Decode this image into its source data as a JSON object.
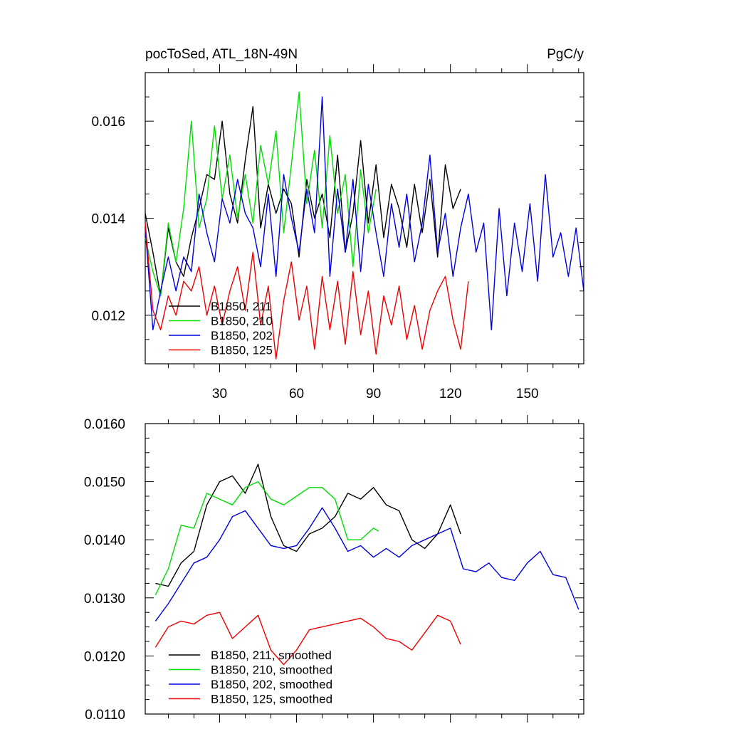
{
  "chart_data": [
    {
      "type": "line",
      "title_left": "pocToSed, ATL_18N-49N",
      "title_right": "PgC/y",
      "xlim": [
        1,
        172
      ],
      "ylim": [
        0.011,
        0.017
      ],
      "xticks": [
        30,
        60,
        90,
        120,
        150
      ],
      "xtick_labels": [
        "30",
        "60",
        "90",
        "120",
        "150"
      ],
      "yticks": [
        0.012,
        0.014,
        0.016
      ],
      "ytick_labels": [
        "0.012",
        "0.014",
        "0.016"
      ],
      "legend": "bottom-left",
      "series": [
        {
          "name": "B1850, 211",
          "color": "#000000",
          "x": [
            1,
            4,
            7,
            10,
            13,
            16,
            19,
            22,
            25,
            28,
            31,
            34,
            37,
            40,
            43,
            46,
            49,
            52,
            55,
            58,
            61,
            64,
            67,
            70,
            73,
            76,
            79,
            82,
            85,
            88,
            91,
            94,
            97,
            100,
            103,
            106,
            109,
            112,
            115,
            118,
            121,
            124
          ],
          "y": [
            0.0141,
            0.0133,
            0.0124,
            0.0138,
            0.0131,
            0.0128,
            0.0136,
            0.0142,
            0.0149,
            0.0148,
            0.016,
            0.0145,
            0.0139,
            0.0152,
            0.0163,
            0.0138,
            0.0147,
            0.0141,
            0.0146,
            0.0143,
            0.0132,
            0.0148,
            0.014,
            0.0145,
            0.0136,
            0.0153,
            0.0133,
            0.0141,
            0.0156,
            0.0139,
            0.0151,
            0.0136,
            0.0147,
            0.0142,
            0.0134,
            0.0147,
            0.0137,
            0.0148,
            0.0132,
            0.0151,
            0.0142,
            0.0146
          ]
        },
        {
          "name": "B1850, 210",
          "color": "#00dd00",
          "x": [
            1,
            4,
            7,
            10,
            13,
            16,
            19,
            22,
            25,
            28,
            31,
            34,
            37,
            40,
            43,
            46,
            49,
            52,
            55,
            58,
            61,
            64,
            67,
            70,
            73,
            76,
            79,
            82,
            85,
            88,
            91
          ],
          "y": [
            0.0136,
            0.0129,
            0.0124,
            0.0139,
            0.0131,
            0.0142,
            0.016,
            0.0138,
            0.0144,
            0.0159,
            0.0144,
            0.0153,
            0.014,
            0.0149,
            0.0139,
            0.0155,
            0.0147,
            0.0158,
            0.0137,
            0.0151,
            0.0166,
            0.0143,
            0.0154,
            0.0138,
            0.0157,
            0.0141,
            0.0149,
            0.013,
            0.015,
            0.0137,
            0.0146
          ]
        },
        {
          "name": "B1850, 202",
          "color": "#0000dd",
          "x": [
            1,
            4,
            7,
            10,
            13,
            16,
            19,
            22,
            25,
            28,
            31,
            34,
            37,
            40,
            43,
            46,
            49,
            52,
            55,
            58,
            61,
            64,
            67,
            70,
            73,
            76,
            79,
            82,
            85,
            88,
            91,
            94,
            97,
            100,
            103,
            106,
            109,
            112,
            115,
            118,
            121,
            124,
            127,
            130,
            133,
            136,
            139,
            142,
            145,
            148,
            151,
            154,
            157,
            160,
            163,
            166,
            169,
            172
          ],
          "y": [
            0.0138,
            0.0117,
            0.0125,
            0.0132,
            0.0125,
            0.0132,
            0.0129,
            0.0145,
            0.0137,
            0.0131,
            0.0144,
            0.0139,
            0.0148,
            0.0141,
            0.0138,
            0.013,
            0.0145,
            0.0128,
            0.0149,
            0.014,
            0.0133,
            0.0146,
            0.0137,
            0.0165,
            0.0128,
            0.0146,
            0.0133,
            0.0148,
            0.0129,
            0.0147,
            0.0137,
            0.0128,
            0.0143,
            0.0134,
            0.0145,
            0.0131,
            0.0139,
            0.0153,
            0.0133,
            0.0141,
            0.0128,
            0.0138,
            0.0145,
            0.0133,
            0.0139,
            0.0117,
            0.0142,
            0.0124,
            0.0139,
            0.0129,
            0.0143,
            0.0127,
            0.0149,
            0.0132,
            0.0137,
            0.0128,
            0.0138,
            0.0125
          ]
        },
        {
          "name": "B1850, 125",
          "color": "#ee0000",
          "x": [
            1,
            4,
            7,
            10,
            13,
            16,
            19,
            22,
            25,
            28,
            31,
            34,
            37,
            40,
            43,
            46,
            49,
            52,
            55,
            58,
            61,
            64,
            67,
            70,
            73,
            76,
            79,
            82,
            85,
            88,
            91,
            94,
            97,
            100,
            103,
            106,
            109,
            112,
            115,
            118,
            121,
            124,
            127
          ],
          "y": [
            0.0139,
            0.0121,
            0.0117,
            0.0124,
            0.012,
            0.0127,
            0.0125,
            0.013,
            0.012,
            0.0126,
            0.0118,
            0.0125,
            0.013,
            0.0121,
            0.0133,
            0.0118,
            0.0126,
            0.0111,
            0.0123,
            0.0131,
            0.0119,
            0.0126,
            0.0113,
            0.0128,
            0.0117,
            0.0127,
            0.0114,
            0.0129,
            0.0116,
            0.0125,
            0.0112,
            0.0124,
            0.0118,
            0.0126,
            0.0115,
            0.0122,
            0.0113,
            0.0121,
            0.0125,
            0.0128,
            0.0119,
            0.0113,
            0.0127
          ]
        }
      ]
    },
    {
      "type": "line",
      "xlim": [
        1,
        172
      ],
      "ylim": [
        0.011,
        0.016
      ],
      "xticks": [
        30,
        60,
        90,
        120,
        150
      ],
      "yticks": [
        0.011,
        0.012,
        0.013,
        0.014,
        0.015,
        0.016
      ],
      "ytick_labels": [
        "0.0110",
        "0.0120",
        "0.0130",
        "0.0140",
        "0.0150",
        "0.0160"
      ],
      "legend": "bottom-left",
      "series": [
        {
          "name": "B1850, 211, smoothed",
          "color": "#000000",
          "x": [
            5,
            10,
            15,
            20,
            25,
            30,
            35,
            40,
            45,
            50,
            55,
            60,
            65,
            70,
            75,
            80,
            85,
            90,
            95,
            100,
            105,
            110,
            115,
            120,
            124
          ],
          "y": [
            0.01325,
            0.0132,
            0.0136,
            0.0138,
            0.0146,
            0.015,
            0.0151,
            0.0148,
            0.0153,
            0.0144,
            0.0139,
            0.0138,
            0.0141,
            0.0142,
            0.0144,
            0.0148,
            0.0147,
            0.0149,
            0.0146,
            0.0145,
            0.014,
            0.01385,
            0.0141,
            0.0146,
            0.0141
          ]
        },
        {
          "name": "B1850, 210, smoothed",
          "color": "#00dd00",
          "x": [
            5,
            10,
            15,
            20,
            25,
            30,
            35,
            40,
            45,
            50,
            55,
            60,
            65,
            70,
            75,
            80,
            85,
            90,
            92
          ],
          "y": [
            0.01305,
            0.0135,
            0.01425,
            0.0142,
            0.0148,
            0.0147,
            0.0146,
            0.0149,
            0.015,
            0.0147,
            0.0146,
            0.01475,
            0.0149,
            0.0149,
            0.0147,
            0.014,
            0.014,
            0.0142,
            0.01415
          ]
        },
        {
          "name": "B1850, 202, smoothed",
          "color": "#0000dd",
          "x": [
            5,
            10,
            15,
            20,
            25,
            30,
            35,
            40,
            45,
            50,
            55,
            60,
            65,
            70,
            75,
            80,
            85,
            90,
            95,
            100,
            105,
            110,
            115,
            120,
            125,
            130,
            135,
            140,
            145,
            150,
            155,
            160,
            165,
            170
          ],
          "y": [
            0.0126,
            0.0129,
            0.01325,
            0.0136,
            0.0137,
            0.014,
            0.0144,
            0.0145,
            0.0142,
            0.0139,
            0.01385,
            0.0139,
            0.0142,
            0.01455,
            0.0142,
            0.0138,
            0.0139,
            0.0137,
            0.01385,
            0.0137,
            0.0139,
            0.014,
            0.0141,
            0.0142,
            0.0135,
            0.01345,
            0.0136,
            0.01335,
            0.0133,
            0.0136,
            0.0138,
            0.0134,
            0.01335,
            0.0128
          ]
        },
        {
          "name": "B1850, 125, smoothed",
          "color": "#ee0000",
          "x": [
            5,
            10,
            15,
            20,
            25,
            30,
            35,
            40,
            45,
            50,
            55,
            60,
            65,
            70,
            75,
            80,
            85,
            90,
            95,
            100,
            105,
            110,
            115,
            120,
            124
          ],
          "y": [
            0.01215,
            0.0125,
            0.0126,
            0.01255,
            0.0127,
            0.01275,
            0.0123,
            0.0125,
            0.0127,
            0.0121,
            0.01185,
            0.0121,
            0.01245,
            0.0125,
            0.01255,
            0.0126,
            0.01265,
            0.0125,
            0.0123,
            0.01225,
            0.0121,
            0.0124,
            0.0127,
            0.0126,
            0.0122
          ]
        }
      ]
    }
  ]
}
